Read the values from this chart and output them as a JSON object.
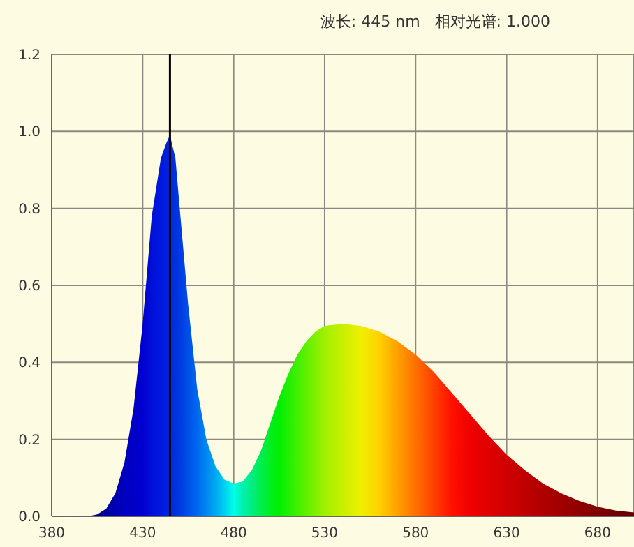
{
  "chart_data": {
    "type": "area",
    "annotations": [
      "波长: 445 nm   相对光谱: 1.000"
    ],
    "x": [
      380,
      400,
      405,
      410,
      415,
      420,
      425,
      430,
      435,
      440,
      443,
      445,
      448,
      450,
      455,
      460,
      465,
      470,
      475,
      480,
      485,
      490,
      495,
      500,
      505,
      510,
      515,
      520,
      525,
      530,
      540,
      550,
      560,
      570,
      580,
      590,
      600,
      610,
      620,
      630,
      640,
      650,
      660,
      670,
      680,
      690,
      700
    ],
    "series": [
      {
        "values": [
          0,
          0,
          0.005,
          0.02,
          0.06,
          0.14,
          0.28,
          0.5,
          0.78,
          0.93,
          0.97,
          0.99,
          0.93,
          0.82,
          0.55,
          0.33,
          0.2,
          0.13,
          0.095,
          0.085,
          0.09,
          0.12,
          0.17,
          0.24,
          0.31,
          0.37,
          0.42,
          0.455,
          0.48,
          0.495,
          0.5,
          0.495,
          0.48,
          0.455,
          0.42,
          0.375,
          0.32,
          0.265,
          0.21,
          0.16,
          0.12,
          0.085,
          0.06,
          0.04,
          0.025,
          0.015,
          0.01
        ],
        "colors": [
          "#000060",
          "#000080",
          "#000090",
          "#0000a0",
          "#0000b0",
          "#0000c0",
          "#0000c8",
          "#0000d0",
          "#0010d8",
          "#0018e0",
          "#0020e0",
          "#0028e0",
          "#0030e0",
          "#0038e0",
          "#0050e8",
          "#0068f0",
          "#0088f0",
          "#00a8f0",
          "#00d0f0",
          "#00ffe8",
          "#00f0b0",
          "#00ee80",
          "#00ee50",
          "#00ee20",
          "#00f000",
          "#20f000",
          "#40f000",
          "#60f000",
          "#80f000",
          "#a0f000",
          "#c8f000",
          "#f0f000",
          "#ffd000",
          "#ffa000",
          "#ff7000",
          "#ff4000",
          "#ff1000",
          "#f00000",
          "#e00000",
          "#d00000",
          "#c00000",
          "#b00000",
          "#a00000",
          "#900000",
          "#800000",
          "#700000",
          "#600000"
        ]
      }
    ],
    "xlim": [
      380,
      700
    ],
    "ylim": [
      0,
      1.2
    ],
    "xticks": [
      380,
      430,
      480,
      530,
      580,
      630,
      680
    ],
    "yticks": [
      {
        "value": 0,
        "label": "0.0"
      },
      0.2,
      0.4,
      0.6,
      0.8,
      {
        "value": 1,
        "label": "1.0"
      },
      1.2
    ],
    "ref_lines": [
      {
        "axis": "x",
        "value": 445,
        "color": "#000000"
      }
    ],
    "grid": true
  }
}
